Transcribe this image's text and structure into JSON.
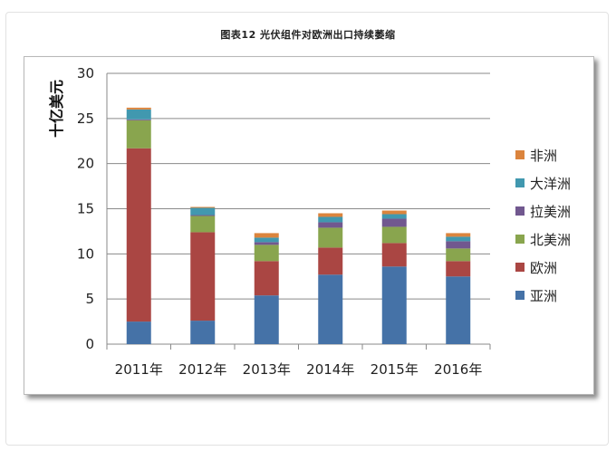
{
  "chart_data": {
    "type": "bar",
    "stacked": true,
    "title": "图表12 光伏组件对欧洲出口持续萎缩",
    "ylabel": "十亿美元",
    "xlabel": "",
    "ylim": [
      0,
      30
    ],
    "yticks": [
      0,
      5,
      10,
      15,
      20,
      25,
      30
    ],
    "grid": true,
    "legend_position": "right",
    "categories": [
      "2011年",
      "2012年",
      "2013年",
      "2014年",
      "2015年",
      "2016年"
    ],
    "series": [
      {
        "name": "亚洲",
        "color": "#4572A7",
        "values": [
          2.5,
          2.6,
          5.4,
          7.7,
          8.6,
          7.5
        ]
      },
      {
        "name": "欧洲",
        "color": "#AA4643",
        "values": [
          19.2,
          9.8,
          3.8,
          3.0,
          2.6,
          1.7
        ]
      },
      {
        "name": "北美洲",
        "color": "#89A54E",
        "values": [
          3.1,
          1.8,
          1.8,
          2.2,
          1.8,
          1.4
        ]
      },
      {
        "name": "拉美洲",
        "color": "#71588F",
        "values": [
          0.1,
          0.1,
          0.3,
          0.6,
          0.9,
          0.8
        ]
      },
      {
        "name": "大洋洲",
        "color": "#4198AF",
        "values": [
          1.1,
          0.8,
          0.5,
          0.6,
          0.5,
          0.5
        ]
      },
      {
        "name": "非洲",
        "color": "#DB843D",
        "values": [
          0.2,
          0.1,
          0.5,
          0.4,
          0.4,
          0.4
        ]
      }
    ]
  }
}
